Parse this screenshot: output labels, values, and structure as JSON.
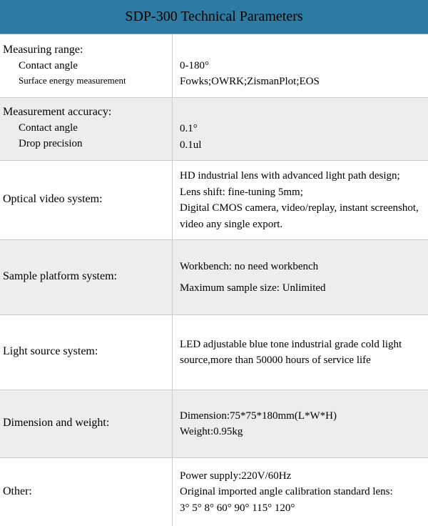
{
  "header": {
    "title": "SDP-300 Technical Parameters",
    "bg_color": "#2b7ba3",
    "text_color": "#000000"
  },
  "table": {
    "row_bg_odd": "#ffffff",
    "row_bg_even": "#ededed",
    "border_color": "#cccccc",
    "font_family": "Georgia, Times New Roman, serif",
    "rows": [
      {
        "section": "Measuring range:",
        "subs": [
          {
            "label": "Contact angle",
            "value": "0-180°"
          },
          {
            "label": "Surface energy measurement",
            "value": "Fowks;OWRK;ZismanPlot;EOS",
            "small": true
          }
        ]
      },
      {
        "section": "Measurement accuracy:",
        "subs": [
          {
            "label": "Contact angle",
            "value": "0.1°"
          },
          {
            "label": "Drop precision",
            "value": "0.1ul"
          }
        ]
      },
      {
        "section": "Optical video system:",
        "lines": [
          "HD industrial lens with advanced light path design;",
          "Lens shift: fine-tuning 5mm;",
          "Digital CMOS camera, video/replay, instant screenshot, video any single export."
        ]
      },
      {
        "section": "Sample platform system:",
        "lines": [
          "Workbench: no need workbench",
          "Maximum sample size: Unlimited"
        ],
        "spaced": true
      },
      {
        "section": "Light source system:",
        "lines": [
          "LED adjustable blue tone industrial grade cold light source,more than 50000 hours of service life"
        ]
      },
      {
        "section": "Dimension and weight:",
        "lines": [
          "Dimension:75*75*180mm(L*W*H)",
          "Weight:0.95kg"
        ]
      },
      {
        "section": "Other:",
        "lines": [
          "Power supply:220V/60Hz",
          "Original imported angle calibration standard lens:",
          "3° 5° 8° 60° 90° 115° 120°"
        ]
      }
    ]
  }
}
